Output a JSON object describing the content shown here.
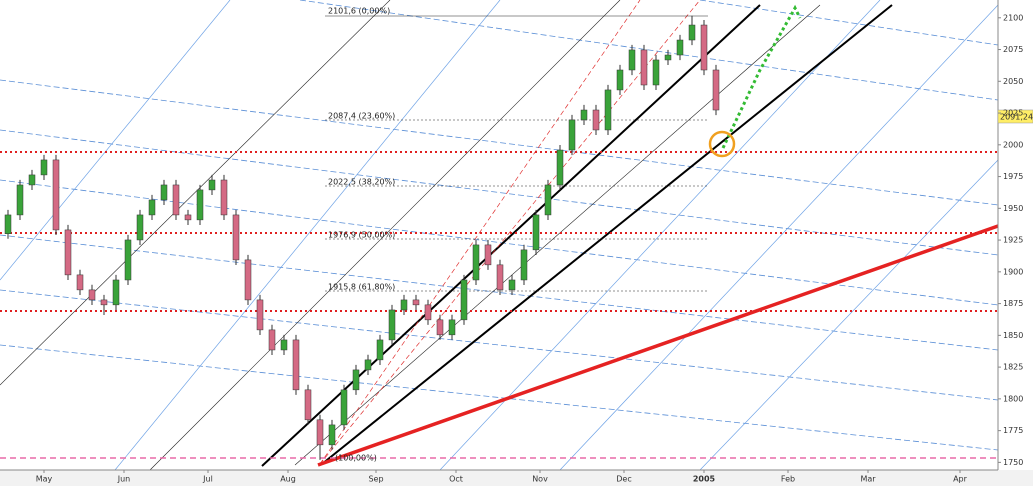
{
  "chart_data": {
    "type": "candlestick",
    "x": [
      2,
      5,
      8,
      11,
      14,
      17,
      20,
      23,
      26,
      29,
      32,
      35,
      38,
      41,
      44,
      47,
      50,
      53,
      56,
      59,
      62,
      65,
      68,
      71,
      74,
      77,
      80,
      83,
      86,
      89,
      92,
      95,
      98,
      101,
      104,
      107,
      110,
      113,
      116,
      119,
      122,
      125,
      128,
      131,
      134,
      137,
      140,
      143,
      146,
      149,
      152,
      155,
      158,
      161,
      164,
      167,
      170,
      173,
      176,
      179
    ],
    "open": [
      1930.0,
      1944.8,
      1968.4,
      1976.3,
      1988.1,
      1933.0,
      1897.6,
      1885.8,
      1877.9,
      1874.0,
      1893.6,
      1925.1,
      1944.8,
      1956.6,
      1968.4,
      1944.8,
      1940.9,
      1964.5,
      1972.3,
      1944.8,
      1909.4,
      1877.9,
      1854.3,
      1838.5,
      1846.4,
      1807.1,
      1783.5,
      1763.8,
      1779.5,
      1807.1,
      1822.8,
      1830.7,
      1846.4,
      1870.0,
      1877.9,
      1874.0,
      1862.2,
      1850.4,
      1862.2,
      1893.6,
      1921.2,
      1905.5,
      1885.8,
      1893.6,
      1917.3,
      1944.8,
      1968.4,
      1995.9,
      2019.6,
      2027.4,
      2011.7,
      2043.2,
      2058.9,
      2074.7,
      2047.1,
      2066.8,
      2070.7,
      2082.5,
      2094.3,
      2058.9
    ],
    "high": [
      1948.8,
      1972.4,
      1980.3,
      1992.1,
      1992.1,
      1937.0,
      1901.6,
      1889.8,
      1881.9,
      1897.6,
      1929.1,
      1948.8,
      1960.6,
      1972.4,
      1972.4,
      1948.8,
      1968.5,
      1976.3,
      1976.3,
      1948.8,
      1913.4,
      1881.9,
      1858.3,
      1850.4,
      1850.4,
      1811.1,
      1787.5,
      1783.5,
      1811.1,
      1826.8,
      1834.7,
      1850.4,
      1874.0,
      1881.9,
      1881.9,
      1878.0,
      1866.2,
      1866.2,
      1897.6,
      1925.2,
      1925.2,
      1909.5,
      1897.6,
      1921.3,
      1948.8,
      1972.4,
      1999.9,
      2023.6,
      2031.4,
      2031.4,
      2047.2,
      2062.9,
      2078.7,
      2078.7,
      2070.8,
      2074.7,
      2086.5,
      2101.6,
      2098.3,
      2062.9
    ],
    "low": [
      1926.0,
      1940.8,
      1964.4,
      1972.3,
      1929.0,
      1893.6,
      1881.8,
      1873.9,
      1866.0,
      1870.0,
      1889.6,
      1921.1,
      1940.8,
      1952.6,
      1940.8,
      1936.9,
      1936.9,
      1960.5,
      1940.8,
      1905.4,
      1873.9,
      1850.3,
      1834.5,
      1834.5,
      1803.1,
      1779.5,
      1752.0,
      1759.8,
      1775.5,
      1803.1,
      1818.8,
      1826.7,
      1842.4,
      1866.0,
      1870.0,
      1858.2,
      1846.4,
      1846.4,
      1858.2,
      1889.6,
      1901.5,
      1881.8,
      1881.8,
      1889.6,
      1913.3,
      1940.8,
      1964.4,
      1991.9,
      2015.6,
      2007.7,
      2007.7,
      2039.2,
      2054.9,
      2043.1,
      2043.1,
      2062.8,
      2066.7,
      2078.5,
      2054.9,
      2023.4
    ],
    "close": [
      1944.8,
      1968.4,
      1976.3,
      1988.1,
      1933.0,
      1897.6,
      1885.8,
      1877.9,
      1874.0,
      1893.6,
      1925.1,
      1944.8,
      1956.6,
      1968.4,
      1944.8,
      1940.9,
      1964.5,
      1972.3,
      1944.8,
      1909.4,
      1877.9,
      1854.3,
      1838.5,
      1846.4,
      1807.1,
      1783.5,
      1763.8,
      1779.5,
      1807.1,
      1822.8,
      1830.7,
      1846.4,
      1870.0,
      1877.9,
      1874.0,
      1862.2,
      1850.4,
      1862.2,
      1893.6,
      1921.2,
      1905.5,
      1885.8,
      1893.6,
      1917.3,
      1944.8,
      1968.4,
      1995.9,
      2019.6,
      2027.4,
      2011.7,
      2043.2,
      2058.9,
      2074.7,
      2047.1,
      2066.8,
      2070.7,
      2082.5,
      2094.3,
      2058.9,
      2027.4
    ],
    "up_color": "#3aa33a",
    "down_color": "#d46a84",
    "xlim": [
      0,
      249.5
    ],
    "xticks": [
      {
        "value": 11,
        "label": "May"
      },
      {
        "value": 31,
        "label": "Jun"
      },
      {
        "value": 52,
        "label": "Jul"
      },
      {
        "value": 72,
        "label": "Aug"
      },
      {
        "value": 94,
        "label": "Sep"
      },
      {
        "value": 114,
        "label": "Oct"
      },
      {
        "value": 135,
        "label": "Nov"
      },
      {
        "value": 156,
        "label": "Dec"
      },
      {
        "value": 176,
        "label": "2005"
      },
      {
        "value": 197,
        "label": "Feb"
      },
      {
        "value": 217,
        "label": "Mar"
      },
      {
        "value": 240,
        "label": "Apr"
      }
    ],
    "ylim": [
      1744,
      2114
    ],
    "yticks": [
      1750,
      1775,
      1800,
      1825,
      1850,
      1875,
      1900,
      1925,
      1950,
      1975,
      2000,
      2025,
      2050,
      2075,
      2100
    ],
    "last_price_label": "2091,24",
    "fib_labels": [
      "2101,6 (0,00%)",
      "2087,4 (23,60%)",
      "2022,5 (38,20%)",
      "1976,9 (50,00%)",
      "1915,8 (61,80%)",
      "(100,00%)"
    ],
    "grid": false
  }
}
